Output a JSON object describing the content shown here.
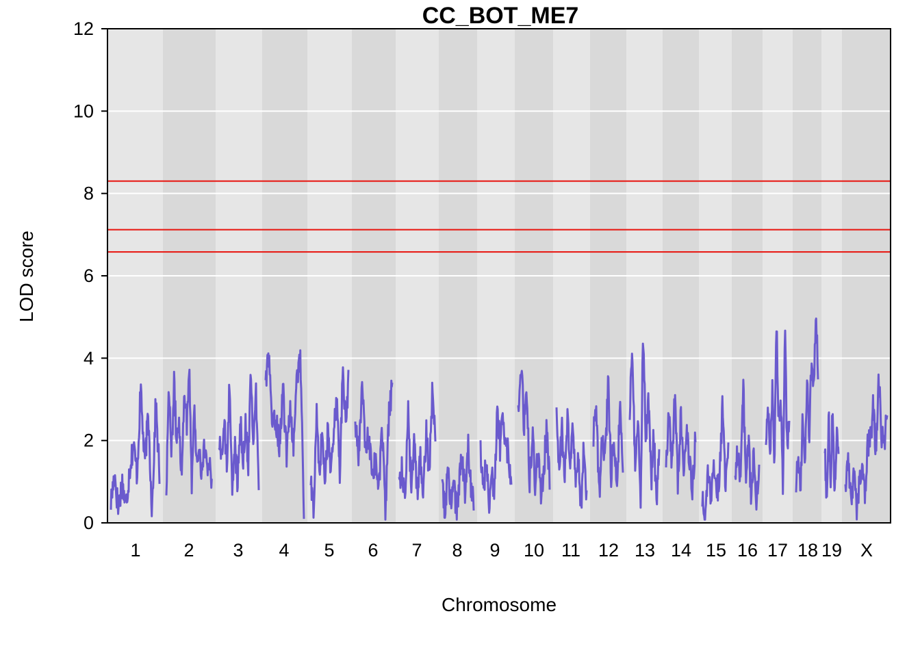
{
  "chart_data": {
    "type": "line",
    "title": "CC_BOT_ME7",
    "xlabel": "Chromosome",
    "ylabel": "LOD score",
    "ylim": [
      0,
      12
    ],
    "yticks": [
      0,
      2,
      4,
      6,
      8,
      10,
      12
    ],
    "grid": true,
    "colors": {
      "line": "#6a5acd",
      "threshold": "#e8120c",
      "band_light": "#e6e6e6",
      "band_dark": "#d9d9d9",
      "gridline": "#ffffff"
    },
    "thresholds": [
      8.3,
      7.12,
      6.58
    ],
    "chromosomes": [
      {
        "label": "1",
        "lod": [
          0.5,
          1.2,
          0.3,
          1.0,
          0.4,
          1.3,
          1.9,
          1.2,
          3.3,
          1.4,
          2.6,
          0.3,
          2.9,
          1.2
        ]
      },
      {
        "label": "2",
        "lod": [
          0.8,
          3.5,
          1.6,
          3.4,
          2.0,
          2.6,
          1.0,
          3.3,
          2.4,
          3.8,
          1.0,
          2.8,
          1.4,
          1.9,
          1.0,
          2.0,
          1.1,
          1.6,
          0.9
        ]
      },
      {
        "label": "3",
        "lod": [
          1.9,
          1.7,
          2.4,
          1.3,
          3.5,
          0.6,
          1.9,
          1.0,
          2.6,
          1.3,
          2.4,
          1.4,
          3.7,
          2.0,
          3.1,
          0.8
        ]
      },
      {
        "label": "4",
        "lod": [
          3.5,
          4.0,
          2.3,
          2.5,
          1.9,
          3.3,
          1.6,
          2.9,
          1.8,
          3.5,
          4.1,
          0.3
        ]
      },
      {
        "label": "5",
        "lod": [
          0.9,
          0.3,
          2.7,
          1.3,
          2.2,
          0.9,
          2.5,
          1.1,
          2.2,
          3.2,
          1.2,
          3.6,
          2.4,
          3.4
        ]
      },
      {
        "label": "6",
        "lod": [
          2.4,
          1.5,
          3.5,
          1.7,
          2.1,
          1.3,
          1.5,
          0.8,
          2.3,
          0.2,
          2.6,
          3.3
        ]
      },
      {
        "label": "7",
        "lod": [
          1.0,
          1.3,
          0.4,
          2.9,
          0.7,
          2.0,
          0.8,
          1.6,
          0.6,
          2.3,
          1.0,
          3.3,
          1.9
        ]
      },
      {
        "label": "8",
        "lod": [
          0.9,
          0.2,
          1.4,
          0.4,
          0.9,
          0.3,
          1.0,
          1.6,
          0.6,
          1.9,
          0.9,
          0.6
        ]
      },
      {
        "label": "9",
        "lod": [
          1.8,
          0.9,
          1.4,
          0.5,
          1.3,
          0.7,
          2.8,
          1.8,
          2.6,
          2.0,
          1.6,
          0.8
        ]
      },
      {
        "label": "10",
        "lod": [
          2.6,
          3.9,
          2.4,
          3.0,
          1.0,
          2.1,
          0.9,
          1.8,
          0.6,
          1.4,
          2.3,
          1.0
        ]
      },
      {
        "label": "11",
        "lod": [
          2.5,
          1.3,
          2.3,
          1.1,
          2.6,
          1.2,
          2.4,
          0.8,
          1.6,
          0.3,
          1.9,
          0.6
        ]
      },
      {
        "label": "12",
        "lod": [
          2.2,
          2.6,
          0.6,
          2.2,
          1.6,
          3.4,
          1.2,
          2.0,
          0.9,
          2.8,
          1.0
        ]
      },
      {
        "label": "13",
        "lod": [
          2.8,
          4.1,
          1.3,
          2.7,
          0.4,
          4.7,
          1.9,
          3.0,
          1.0,
          2.2,
          0.3,
          1.8
        ]
      },
      {
        "label": "14",
        "lod": [
          1.6,
          2.6,
          1.4,
          3.2,
          1.0,
          2.6,
          1.1,
          2.3,
          1.4,
          0.7,
          2.2
        ]
      },
      {
        "label": "15",
        "lod": [
          0.6,
          0.3,
          1.2,
          0.5,
          1.5,
          0.7,
          1.2,
          2.9,
          0.9,
          1.7
        ]
      },
      {
        "label": "16",
        "lod": [
          1.3,
          1.7,
          0.9,
          3.4,
          1.2,
          2.0,
          0.7,
          1.7,
          0.5,
          1.4
        ]
      },
      {
        "label": "17",
        "lod": [
          2.0,
          2.8,
          1.6,
          3.3,
          1.4,
          4.9,
          2.4,
          3.2,
          1.0,
          4.7,
          1.6,
          2.7
        ]
      },
      {
        "label": "18",
        "lod": [
          0.8,
          1.7,
          0.7,
          2.5,
          1.2,
          3.5,
          2.2,
          4.0,
          3.1,
          5.2,
          3.8
        ]
      },
      {
        "label": "19",
        "lod": [
          1.7,
          0.5,
          2.5,
          1.0,
          3.0,
          0.7,
          2.2,
          1.4
        ]
      },
      {
        "label": "X",
        "lod": [
          0.9,
          1.4,
          0.5,
          1.2,
          0.3,
          1.0,
          1.6,
          0.7,
          1.9,
          2.0,
          2.8,
          1.6,
          3.5,
          2.1,
          1.9,
          2.7
        ]
      }
    ]
  }
}
